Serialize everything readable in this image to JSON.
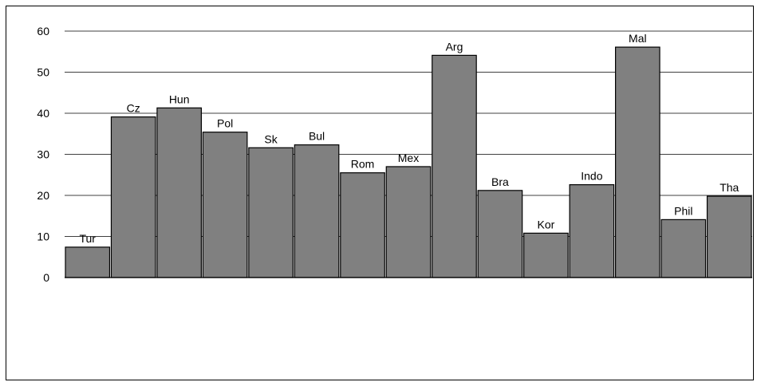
{
  "chart_data": {
    "type": "bar",
    "title": "",
    "xlabel": "",
    "ylabel": "",
    "ylim": [
      0,
      60
    ],
    "yticks": [
      0,
      10,
      20,
      30,
      40,
      50,
      60
    ],
    "grid": true,
    "legend": "none",
    "categories": [
      "Tur",
      "Cz",
      "Hun",
      "Pol",
      "Sk",
      "Bul",
      "Rom",
      "Mex",
      "Arg",
      "Bra",
      "Kor",
      "Indo",
      "Mal",
      "Phil",
      "Tha"
    ],
    "values": [
      7.4,
      39.1,
      41.3,
      35.4,
      31.6,
      32.3,
      25.5,
      27.0,
      54.1,
      21.2,
      10.8,
      22.6,
      56.1,
      14.1,
      19.8
    ],
    "bar_color": "#808080",
    "bar_outline": "#000000"
  }
}
